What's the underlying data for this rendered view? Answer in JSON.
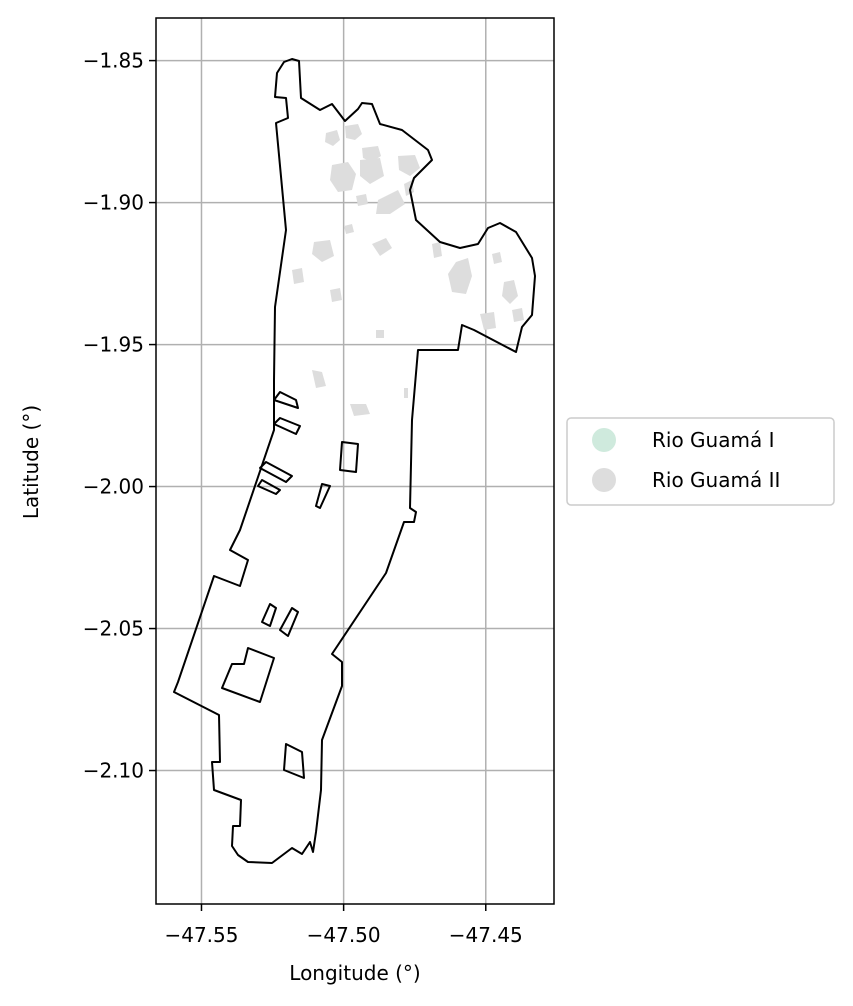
{
  "chart_data": {
    "type": "map",
    "xlabel": "Longitude (°)",
    "ylabel": "Latitude (°)",
    "xlim": [
      -47.566,
      -47.426
    ],
    "ylim": [
      -2.147,
      -1.835
    ],
    "grid": true,
    "legend_placement": "center-left outside",
    "x_ticks": [
      -47.55,
      -47.5,
      -47.45
    ],
    "x_tick_labels": [
      "−47.55",
      "−47.50",
      "−47.45"
    ],
    "y_ticks": [
      -1.85,
      -1.9,
      -1.95,
      -2.0,
      -2.05,
      -2.1
    ],
    "y_tick_labels": [
      "−1.85",
      "−1.90",
      "−1.95",
      "−2.00",
      "−2.05",
      "−2.10"
    ],
    "legend": [
      {
        "label": "Rio Guamá I",
        "color": "#cfeadd"
      },
      {
        "label": "Rio Guamá II",
        "color": "#dddddd"
      }
    ],
    "boundary_color": "#000000",
    "patch_color": "#dddddd"
  }
}
